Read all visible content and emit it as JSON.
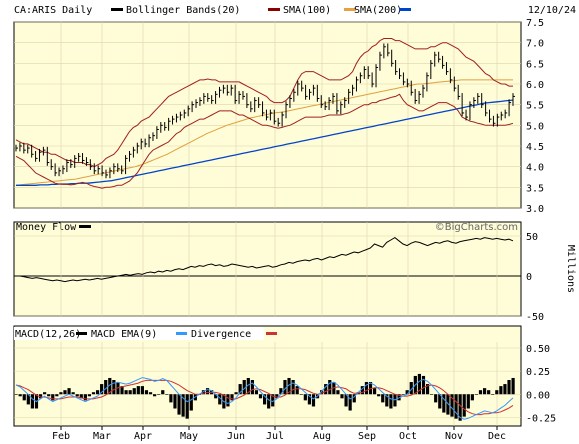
{
  "header": {
    "symbol_label": "CA:ARIS Daily",
    "legend": [
      {
        "name": "Bollinger Bands(20)",
        "color": "#000000"
      },
      {
        "name": "SMA(100)",
        "color": "#8b0000"
      },
      {
        "name": "SMA(200)",
        "color": "#e8a040"
      }
    ],
    "date": "12/10/24"
  },
  "brand": "©BigCharts.com",
  "colors": {
    "panel_bg": "#fffcd8",
    "price": "#000000",
    "bollinger": "#a02020",
    "sma100": "#0044cc",
    "sma200": "#e0a040",
    "macd": "#3399ff",
    "macd_ema": "#cc3333",
    "divergence": "#000000"
  },
  "chart_data": [
    {
      "type": "line",
      "panel": "price",
      "y_ticks": [
        "7.5",
        "7.0",
        "6.5",
        "6.0",
        "5.5",
        "5.0",
        "4.5",
        "4.0",
        "3.5",
        "3.0"
      ],
      "ylim": [
        3.0,
        7.5
      ],
      "x_ticks": [
        "Feb",
        "Mar",
        "Apr",
        "May",
        "Jun",
        "Jul",
        "Aug",
        "Sep",
        "Oct",
        "Nov",
        "Dec"
      ],
      "series": [
        {
          "key": "close",
          "values": [
            4.45,
            4.5,
            4.4,
            4.45,
            4.3,
            4.2,
            4.35,
            4.4,
            4.1,
            4.0,
            3.85,
            3.9,
            3.95,
            4.1,
            4.05,
            4.2,
            4.25,
            4.15,
            4.1,
            4.0,
            3.9,
            3.95,
            3.85,
            3.8,
            3.9,
            4.0,
            3.95,
            3.9,
            4.2,
            4.3,
            4.4,
            4.5,
            4.6,
            4.55,
            4.7,
            4.75,
            4.9,
            5.0,
            4.95,
            5.1,
            5.15,
            5.2,
            5.25,
            5.3,
            5.4,
            5.5,
            5.55,
            5.6,
            5.7,
            5.65,
            5.6,
            5.75,
            5.85,
            5.9,
            5.8,
            5.9,
            5.6,
            5.75,
            5.7,
            5.5,
            5.4,
            5.6,
            5.5,
            5.3,
            5.2,
            5.3,
            5.1,
            5.05,
            5.25,
            5.5,
            5.65,
            5.8,
            6.0,
            5.9,
            5.7,
            5.8,
            5.9,
            5.65,
            5.5,
            5.45,
            5.6,
            5.7,
            5.35,
            5.5,
            5.6,
            5.8,
            5.9,
            6.1,
            6.2,
            6.35,
            6.2,
            6.0,
            6.4,
            6.7,
            6.9,
            6.75,
            6.5,
            6.3,
            6.2,
            6.05,
            6.0,
            5.8,
            5.6,
            5.75,
            5.9,
            6.2,
            6.5,
            6.7,
            6.6,
            6.45,
            6.3,
            6.1,
            5.9,
            5.7,
            5.3,
            5.2,
            5.5,
            5.6,
            5.7,
            5.5,
            5.3,
            5.15,
            5.05,
            5.2,
            5.25,
            5.3,
            5.55,
            5.7
          ]
        },
        {
          "key": "bb_upper",
          "values": [
            4.65,
            4.6,
            4.55,
            4.55,
            4.5,
            4.45,
            4.4,
            4.35,
            4.35,
            4.3,
            4.3,
            4.25,
            4.2,
            4.15,
            4.15,
            4.1,
            4.1,
            4.1,
            4.05,
            4.05,
            4.0,
            4.05,
            4.1,
            4.2,
            4.25,
            4.3,
            4.4,
            4.55,
            4.7,
            4.85,
            4.95,
            5.0,
            5.1,
            5.15,
            5.2,
            5.3,
            5.4,
            5.5,
            5.6,
            5.7,
            5.75,
            5.8,
            5.85,
            5.9,
            5.95,
            6.0,
            6.05,
            6.1,
            6.1,
            6.12,
            6.1,
            6.1,
            6.05,
            6.05,
            6.05,
            6.05,
            6.05,
            6.05,
            6.0,
            5.95,
            5.9,
            5.85,
            5.8,
            5.75,
            5.7,
            5.6,
            5.55,
            5.55,
            5.55,
            5.6,
            5.7,
            5.9,
            6.1,
            6.25,
            6.3,
            6.3,
            6.3,
            6.25,
            6.2,
            6.15,
            6.1,
            6.1,
            6.1,
            6.1,
            6.15,
            6.2,
            6.3,
            6.5,
            6.65,
            6.75,
            6.8,
            6.9,
            6.95,
            7.05,
            7.1,
            7.1,
            7.1,
            7.05,
            7.05,
            7.0,
            6.95,
            6.9,
            6.85,
            6.85,
            6.85,
            6.85,
            6.9,
            6.9,
            6.95,
            7.0,
            7.0,
            6.95,
            6.9,
            6.85,
            6.75,
            6.65,
            6.6,
            6.55,
            6.45,
            6.35,
            6.25,
            6.2,
            6.1,
            6.05,
            6.0,
            6.0,
            5.95,
            5.95
          ]
        },
        {
          "key": "bb_lower",
          "values": [
            4.25,
            4.2,
            4.15,
            4.05,
            3.95,
            3.85,
            3.8,
            3.75,
            3.7,
            3.65,
            3.6,
            3.58,
            3.57,
            3.57,
            3.56,
            3.57,
            3.6,
            3.62,
            3.6,
            3.55,
            3.52,
            3.5,
            3.48,
            3.5,
            3.5,
            3.52,
            3.55,
            3.55,
            3.6,
            3.65,
            3.75,
            3.85,
            4.0,
            4.15,
            4.3,
            4.4,
            4.45,
            4.5,
            4.55,
            4.6,
            4.7,
            4.8,
            4.85,
            4.95,
            5.0,
            5.05,
            5.1,
            5.15,
            5.15,
            5.2,
            5.25,
            5.3,
            5.35,
            5.35,
            5.35,
            5.35,
            5.3,
            5.25,
            5.25,
            5.2,
            5.15,
            5.1,
            5.05,
            5.0,
            5.0,
            4.98,
            4.95,
            4.93,
            4.95,
            4.98,
            5.0,
            5.05,
            5.1,
            5.15,
            5.2,
            5.2,
            5.2,
            5.2,
            5.2,
            5.22,
            5.25,
            5.25,
            5.25,
            5.25,
            5.28,
            5.3,
            5.35,
            5.4,
            5.45,
            5.5,
            5.5,
            5.55,
            5.55,
            5.6,
            5.62,
            5.65,
            5.68,
            5.7,
            5.75,
            5.6,
            5.5,
            5.45,
            5.4,
            5.35,
            5.35,
            5.4,
            5.45,
            5.5,
            5.55,
            5.55,
            5.55,
            5.5,
            5.45,
            5.35,
            5.2,
            5.15,
            5.1,
            5.08,
            5.05,
            5.03,
            5.0,
            5.0,
            5.0,
            5.0,
            5.0,
            5.0,
            5.02,
            5.05
          ]
        },
        {
          "key": "sma100",
          "values": [
            3.55,
            3.55,
            3.55,
            3.55,
            3.55,
            3.55,
            3.56,
            3.56,
            3.56,
            3.57,
            3.57,
            3.58,
            3.58,
            3.58,
            3.59,
            3.59,
            3.6,
            3.6,
            3.6,
            3.61,
            3.62,
            3.63,
            3.64,
            3.65,
            3.66,
            3.68,
            3.7,
            3.72,
            3.74,
            3.76,
            3.78,
            3.8,
            3.82,
            3.84,
            3.86,
            3.88,
            3.9,
            3.92,
            3.94,
            3.96,
            3.98,
            4.0,
            4.02,
            4.04,
            4.06,
            4.08,
            4.1,
            4.12,
            4.14,
            4.16,
            4.18,
            4.2,
            4.22,
            4.24,
            4.26,
            4.28,
            4.3,
            4.32,
            4.34,
            4.36,
            4.38,
            4.4,
            4.42,
            4.44,
            4.46,
            4.48,
            4.5,
            4.52,
            4.54,
            4.56,
            4.58,
            4.6,
            4.62,
            4.64,
            4.66,
            4.68,
            4.7,
            4.72,
            4.74,
            4.76,
            4.78,
            4.8,
            4.82,
            4.84,
            4.86,
            4.88,
            4.9,
            4.92,
            4.94,
            4.96,
            4.98,
            5.0,
            5.02,
            5.04,
            5.06,
            5.08,
            5.1,
            5.12,
            5.14,
            5.16,
            5.18,
            5.2,
            5.22,
            5.24,
            5.26,
            5.28,
            5.3,
            5.32,
            5.34,
            5.36,
            5.38,
            5.4,
            5.42,
            5.44,
            5.46,
            5.48,
            5.5,
            5.52,
            5.54,
            5.55,
            5.56,
            5.57,
            5.58,
            5.59,
            5.6,
            5.61
          ]
        },
        {
          "key": "sma200",
          "values": [
            3.55,
            3.56,
            3.57,
            3.58,
            3.59,
            3.6,
            3.61,
            3.62,
            3.63,
            3.64,
            3.65,
            3.66,
            3.67,
            3.68,
            3.69,
            3.7,
            3.72,
            3.74,
            3.76,
            3.78,
            3.8,
            3.82,
            3.84,
            3.86,
            3.88,
            3.9,
            3.92,
            3.94,
            3.96,
            3.98,
            4.0,
            4.03,
            4.06,
            4.1,
            4.14,
            4.18,
            4.22,
            4.26,
            4.3,
            4.35,
            4.4,
            4.45,
            4.5,
            4.55,
            4.6,
            4.65,
            4.7,
            4.75,
            4.8,
            4.84,
            4.88,
            4.92,
            4.96,
            5.0,
            5.03,
            5.06,
            5.09,
            5.12,
            5.15,
            5.18,
            5.2,
            5.22,
            5.24,
            5.26,
            5.28,
            5.3,
            5.31,
            5.32,
            5.34,
            5.36,
            5.38,
            5.4,
            5.42,
            5.44,
            5.46,
            5.48,
            5.5,
            5.52,
            5.54,
            5.56,
            5.58,
            5.6,
            5.62,
            5.64,
            5.66,
            5.68,
            5.7,
            5.72,
            5.74,
            5.76,
            5.78,
            5.8,
            5.82,
            5.84,
            5.86,
            5.88,
            5.9,
            5.92,
            5.94,
            5.96,
            5.98,
            6.0,
            6.0,
            6.01,
            6.02,
            6.03,
            6.04,
            6.05,
            6.06,
            6.07,
            6.08,
            6.09,
            6.1,
            6.1,
            6.1,
            6.1,
            6.1,
            6.1,
            6.1,
            6.1,
            6.1,
            6.1,
            6.1,
            6.1,
            6.1,
            6.1
          ]
        }
      ]
    },
    {
      "type": "line",
      "panel": "money_flow",
      "title": "Money Flow",
      "y_ticks": [
        "50",
        "0",
        "-50"
      ],
      "ylim": [
        -50,
        50
      ],
      "ylabel": "Millions",
      "values": [
        0,
        0,
        -1,
        -2,
        -3,
        -2,
        -3,
        -4,
        -5,
        -6,
        -5,
        -6,
        -7,
        -6,
        -5,
        -6,
        -5,
        -4,
        -5,
        -4,
        -3,
        -4,
        -3,
        -2,
        -1,
        0,
        1,
        2,
        1,
        2,
        3,
        2,
        4,
        5,
        4,
        6,
        5,
        7,
        6,
        8,
        9,
        8,
        10,
        12,
        11,
        13,
        12,
        14,
        15,
        13,
        14,
        12,
        13,
        15,
        14,
        13,
        12,
        11,
        12,
        10,
        11,
        12,
        13,
        11,
        12,
        14,
        15,
        17,
        16,
        18,
        19,
        20,
        19,
        21,
        22,
        20,
        22,
        24,
        23,
        25,
        27,
        26,
        28,
        30,
        29,
        31,
        33,
        35,
        40,
        38,
        36,
        42,
        45,
        48,
        44,
        40,
        38,
        41,
        43,
        42,
        40,
        38,
        40,
        42,
        41,
        43,
        44,
        42,
        41,
        43,
        44,
        45,
        46,
        47,
        46,
        48,
        47,
        46,
        47,
        46,
        45,
        46,
        44
      ]
    },
    {
      "type": "line",
      "panel": "macd",
      "legend": [
        {
          "name": "MACD(12,26)",
          "color": "#000000"
        },
        {
          "name": "MACD EMA(9)",
          "color": "#3399ff"
        },
        {
          "name": "Divergence",
          "color": "#cc3333"
        }
      ],
      "y_ticks": [
        "0.50",
        "0.25",
        "0.00",
        "-0.25"
      ],
      "ylim": [
        -0.3,
        0.5
      ],
      "series": [
        {
          "key": "macd",
          "values": [
            0.1,
            0.08,
            0.04,
            0.0,
            -0.05,
            -0.08,
            -0.05,
            -0.02,
            -0.05,
            -0.08,
            -0.06,
            -0.04,
            -0.02,
            0.0,
            -0.02,
            -0.04,
            -0.06,
            -0.08,
            -0.06,
            -0.04,
            -0.02,
            0.02,
            0.06,
            0.1,
            0.12,
            0.13,
            0.12,
            0.11,
            0.12,
            0.14,
            0.16,
            0.18,
            0.17,
            0.16,
            0.14,
            0.15,
            0.17,
            0.15,
            0.1,
            0.05,
            0.0,
            -0.04,
            -0.08,
            -0.06,
            -0.03,
            0.0,
            0.03,
            0.05,
            0.04,
            0.0,
            -0.04,
            -0.08,
            -0.1,
            -0.08,
            -0.04,
            0.02,
            0.06,
            0.1,
            0.12,
            0.08,
            0.03,
            -0.02,
            -0.06,
            -0.08,
            -0.05,
            0.0,
            0.06,
            0.1,
            0.12,
            0.1,
            0.06,
            0.02,
            -0.02,
            -0.05,
            -0.02,
            0.03,
            0.08,
            0.12,
            0.13,
            0.1,
            0.05,
            0.0,
            -0.05,
            -0.03,
            0.02,
            0.06,
            0.1,
            0.12,
            0.1,
            0.06,
            0.02,
            -0.02,
            -0.05,
            -0.06,
            -0.04,
            -0.02,
            0.0,
            0.05,
            0.1,
            0.14,
            0.16,
            0.14,
            0.1,
            0.05,
            0.0,
            -0.05,
            -0.1,
            -0.15,
            -0.2,
            -0.25,
            -0.27,
            -0.26,
            -0.24,
            -0.22,
            -0.2,
            -0.18,
            -0.19,
            -0.2,
            -0.18,
            -0.15,
            -0.12,
            -0.08,
            -0.04
          ]
        },
        {
          "key": "macd_ema",
          "values": [
            0.1,
            0.09,
            0.07,
            0.05,
            0.02,
            -0.01,
            -0.03,
            -0.03,
            -0.04,
            -0.05,
            -0.05,
            -0.05,
            -0.04,
            -0.03,
            -0.03,
            -0.03,
            -0.04,
            -0.05,
            -0.05,
            -0.05,
            -0.04,
            -0.03,
            -0.01,
            0.02,
            0.05,
            0.07,
            0.08,
            0.09,
            0.1,
            0.11,
            0.12,
            0.14,
            0.15,
            0.15,
            0.15,
            0.15,
            0.15,
            0.15,
            0.14,
            0.12,
            0.1,
            0.07,
            0.04,
            0.02,
            0.0,
            0.0,
            0.01,
            0.02,
            0.02,
            0.02,
            0.01,
            -0.01,
            -0.04,
            -0.05,
            -0.05,
            -0.03,
            -0.01,
            0.02,
            0.05,
            0.06,
            0.05,
            0.03,
            0.01,
            -0.02,
            -0.03,
            -0.03,
            -0.01,
            0.02,
            0.05,
            0.06,
            0.06,
            0.05,
            0.03,
            0.01,
            0.0,
            0.01,
            0.03,
            0.05,
            0.07,
            0.08,
            0.07,
            0.06,
            0.03,
            0.01,
            0.01,
            0.02,
            0.04,
            0.06,
            0.07,
            0.07,
            0.06,
            0.04,
            0.02,
            0.0,
            -0.01,
            -0.02,
            -0.02,
            -0.01,
            0.01,
            0.04,
            0.07,
            0.09,
            0.1,
            0.09,
            0.07,
            0.04,
            0.0,
            -0.04,
            -0.08,
            -0.12,
            -0.16,
            -0.19,
            -0.21,
            -0.22,
            -0.22,
            -0.21,
            -0.21,
            -0.2,
            -0.2,
            -0.19,
            -0.17,
            -0.15,
            -0.12
          ]
        }
      ]
    }
  ]
}
